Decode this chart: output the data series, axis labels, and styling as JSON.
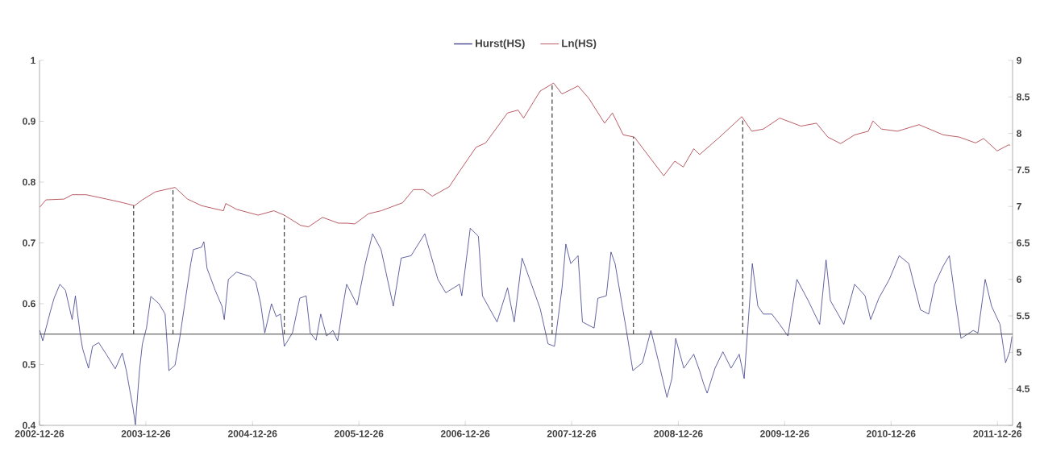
{
  "chart_data": {
    "type": "line",
    "legend": "top",
    "xlim": [
      "2002-12-26",
      "2012-02-16"
    ],
    "xticks": [
      "2002-12-26",
      "2003-12-26",
      "2004-12-26",
      "2005-12-26",
      "2006-12-26",
      "2007-12-26",
      "2008-12-26",
      "2009-12-26",
      "2010-12-26",
      "2011-12-26"
    ],
    "ylim": [
      0.4,
      1
    ],
    "yticks": [
      0.4,
      0.5,
      0.6,
      0.7,
      0.8,
      0.9,
      1
    ],
    "y2lim": [
      4,
      9
    ],
    "y2ticks": [
      4,
      4.5,
      5,
      5.5,
      6,
      6.5,
      7,
      7.5,
      8,
      8.5,
      9
    ],
    "ref_lines": [
      {
        "axis": "y",
        "value": 0.55,
        "color": "#404040",
        "line_style": "solid"
      },
      {
        "axis": "x",
        "value": "2003-11-14",
        "color": "#404040",
        "line_style": "dashed"
      },
      {
        "axis": "x",
        "value": "2004-03-28",
        "color": "#404040",
        "line_style": "dashed"
      },
      {
        "axis": "x",
        "value": "2005-04-14",
        "color": "#404040",
        "line_style": "dashed"
      },
      {
        "axis": "x",
        "value": "2007-10-20",
        "color": "#404040",
        "line_style": "dashed"
      },
      {
        "axis": "x",
        "value": "2008-07-25",
        "color": "#404040",
        "line_style": "dashed"
      },
      {
        "axis": "x",
        "value": "2009-08-04",
        "color": "#404040",
        "line_style": "dashed"
      }
    ],
    "series": [
      {
        "name": "Hurst(HS)",
        "color": "#3c3c8c",
        "x": [
          "2002-12-27",
          "2003-01-06",
          "2003-02-01",
          "2003-02-14",
          "2003-03-06",
          "2003-03-25",
          "2003-04-17",
          "2003-04-28",
          "2003-05-14",
          "2003-05-23",
          "2003-06-12",
          "2003-06-26",
          "2003-07-17",
          "2003-08-12",
          "2003-09-12",
          "2003-10-06",
          "2003-10-20",
          "2003-10-28",
          "2003-11-12",
          "2003-11-20",
          "2003-12-04",
          "2003-12-14",
          "2003-12-28",
          "2004-01-12",
          "2004-02-09",
          "2004-03-01",
          "2004-03-14",
          "2004-04-04",
          "2004-04-20",
          "2004-05-09",
          "2004-05-28",
          "2004-06-06",
          "2004-07-04",
          "2004-07-12",
          "2004-07-23",
          "2004-08-20",
          "2004-09-12",
          "2004-09-20",
          "2004-10-04",
          "2004-11-01",
          "2004-12-17",
          "2005-01-06",
          "2005-01-23",
          "2005-02-06",
          "2005-03-01",
          "2005-03-17",
          "2005-04-01",
          "2005-04-14",
          "2005-05-12",
          "2005-06-06",
          "2005-06-28",
          "2005-07-12",
          "2005-08-01",
          "2005-08-17",
          "2005-09-06",
          "2005-09-28",
          "2005-10-14",
          "2005-11-01",
          "2005-11-14",
          "2005-12-20",
          "2006-01-17",
          "2006-02-11",
          "2006-03-12",
          "2006-04-23",
          "2006-05-20",
          "2006-06-23",
          "2006-08-09",
          "2006-09-23",
          "2006-10-20",
          "2006-12-06",
          "2006-12-14",
          "2007-01-12",
          "2007-02-09",
          "2007-02-23",
          "2007-04-14",
          "2007-05-20",
          "2007-06-12",
          "2007-07-09",
          "2007-09-09",
          "2007-10-06",
          "2007-10-28",
          "2007-11-23",
          "2007-12-06",
          "2007-12-23",
          "2008-01-17",
          "2008-02-01",
          "2008-03-12",
          "2008-03-25",
          "2008-04-23",
          "2008-05-09",
          "2008-05-23",
          "2008-07-01",
          "2008-07-23",
          "2008-08-25",
          "2008-09-23",
          "2008-10-20",
          "2008-11-17",
          "2008-12-04",
          "2008-12-17",
          "2009-01-14",
          "2009-02-17",
          "2009-03-09",
          "2009-03-23",
          "2009-04-04",
          "2009-05-01",
          "2009-05-28",
          "2009-06-25",
          "2009-07-23",
          "2009-08-09",
          "2009-08-23",
          "2009-09-06",
          "2009-09-25",
          "2009-10-14",
          "2009-11-12",
          "2009-12-09",
          "2010-01-06",
          "2010-02-06",
          "2010-03-17",
          "2010-04-25",
          "2010-05-17",
          "2010-06-01",
          "2010-07-17",
          "2010-08-23",
          "2010-09-28",
          "2010-10-17",
          "2010-11-14",
          "2010-12-20",
          "2011-01-23",
          "2011-02-25",
          "2011-04-06",
          "2011-05-04",
          "2011-05-25",
          "2011-06-23",
          "2011-07-14",
          "2011-08-04",
          "2011-08-23",
          "2011-10-04",
          "2011-10-20",
          "2011-11-14",
          "2011-12-06",
          "2012-01-04",
          "2012-01-23",
          "2012-02-06",
          "2012-02-14"
        ],
        "values": [
          0.556,
          0.539,
          0.587,
          0.609,
          0.632,
          0.622,
          0.574,
          0.613,
          0.552,
          0.526,
          0.494,
          0.53,
          0.536,
          0.517,
          0.493,
          0.519,
          0.49,
          0.468,
          0.428,
          0.401,
          0.49,
          0.534,
          0.56,
          0.612,
          0.6,
          0.583,
          0.49,
          0.499,
          0.543,
          0.605,
          0.666,
          0.689,
          0.693,
          0.702,
          0.658,
          0.622,
          0.596,
          0.574,
          0.64,
          0.652,
          0.645,
          0.636,
          0.6,
          0.552,
          0.6,
          0.579,
          0.583,
          0.53,
          0.552,
          0.609,
          0.613,
          0.552,
          0.54,
          0.583,
          0.547,
          0.556,
          0.539,
          0.596,
          0.632,
          0.598,
          0.666,
          0.715,
          0.689,
          0.596,
          0.675,
          0.679,
          0.715,
          0.64,
          0.618,
          0.632,
          0.613,
          0.724,
          0.711,
          0.613,
          0.57,
          0.626,
          0.57,
          0.675,
          0.592,
          0.534,
          0.53,
          0.626,
          0.698,
          0.666,
          0.679,
          0.57,
          0.56,
          0.609,
          0.613,
          0.685,
          0.666,
          0.556,
          0.49,
          0.503,
          0.556,
          0.503,
          0.446,
          0.477,
          0.543,
          0.494,
          0.517,
          0.49,
          0.468,
          0.453,
          0.494,
          0.521,
          0.494,
          0.517,
          0.477,
          0.57,
          0.666,
          0.596,
          0.583,
          0.583,
          0.566,
          0.547,
          0.64,
          0.605,
          0.566,
          0.672,
          0.605,
          0.566,
          0.632,
          0.613,
          0.574,
          0.609,
          0.64,
          0.679,
          0.666,
          0.59,
          0.583,
          0.632,
          0.662,
          0.679,
          0.605,
          0.543,
          0.556,
          0.552,
          0.64,
          0.596,
          0.566,
          0.503,
          0.521,
          0.546
        ]
      },
      {
        "name": "Ln(HS)",
        "color": "#a8323c",
        "axis": "y2",
        "x": [
          "2002-12-27",
          "2003-01-17",
          "2003-03-20",
          "2003-04-17",
          "2003-06-04",
          "2003-08-14",
          "2003-10-09",
          "2003-11-17",
          "2003-12-14",
          "2004-01-28",
          "2004-04-04",
          "2004-05-17",
          "2004-07-04",
          "2004-09-17",
          "2004-09-25",
          "2004-11-01",
          "2005-01-14",
          "2005-03-09",
          "2005-04-14",
          "2005-06-09",
          "2005-07-06",
          "2005-08-23",
          "2005-10-17",
          "2005-11-14",
          "2005-12-12",
          "2006-01-28",
          "2006-03-12",
          "2006-05-25",
          "2006-07-01",
          "2006-08-04",
          "2006-09-04",
          "2006-11-01",
          "2006-12-06",
          "2007-02-01",
          "2007-03-06",
          "2007-05-20",
          "2007-06-25",
          "2007-07-14",
          "2007-09-09",
          "2007-10-25",
          "2007-11-23",
          "2008-01-17",
          "2008-02-23",
          "2008-04-17",
          "2008-05-14",
          "2008-06-20",
          "2008-07-28",
          "2008-09-23",
          "2008-11-06",
          "2008-12-14",
          "2009-01-12",
          "2009-02-17",
          "2009-03-09",
          "2009-05-17",
          "2009-08-01",
          "2009-09-04",
          "2009-10-14",
          "2009-12-09",
          "2010-02-20",
          "2010-04-14",
          "2010-05-23",
          "2010-07-06",
          "2010-08-23",
          "2010-10-09",
          "2010-10-25",
          "2010-11-23",
          "2011-01-17",
          "2011-04-01",
          "2011-06-23",
          "2011-08-17",
          "2011-10-12",
          "2011-11-09",
          "2011-12-25",
          "2012-02-01",
          "2012-02-08"
        ],
        "values": [
          6.99,
          7.09,
          7.1,
          7.16,
          7.16,
          7.1,
          7.05,
          7.01,
          7.09,
          7.2,
          7.26,
          7.1,
          7.01,
          6.94,
          7.04,
          6.96,
          6.88,
          6.94,
          6.88,
          6.74,
          6.72,
          6.85,
          6.77,
          6.77,
          6.76,
          6.9,
          6.94,
          7.05,
          7.23,
          7.23,
          7.14,
          7.27,
          7.48,
          7.81,
          7.87,
          8.28,
          8.32,
          8.21,
          8.58,
          8.69,
          8.54,
          8.65,
          8.48,
          8.14,
          8.28,
          7.98,
          7.95,
          7.65,
          7.42,
          7.62,
          7.54,
          7.79,
          7.71,
          7.95,
          8.23,
          8.03,
          8.06,
          8.21,
          8.1,
          8.14,
          7.95,
          7.86,
          7.98,
          8.03,
          8.17,
          8.06,
          8.03,
          8.12,
          7.98,
          7.95,
          7.87,
          7.93,
          7.76,
          7.84,
          7.84
        ]
      }
    ]
  }
}
